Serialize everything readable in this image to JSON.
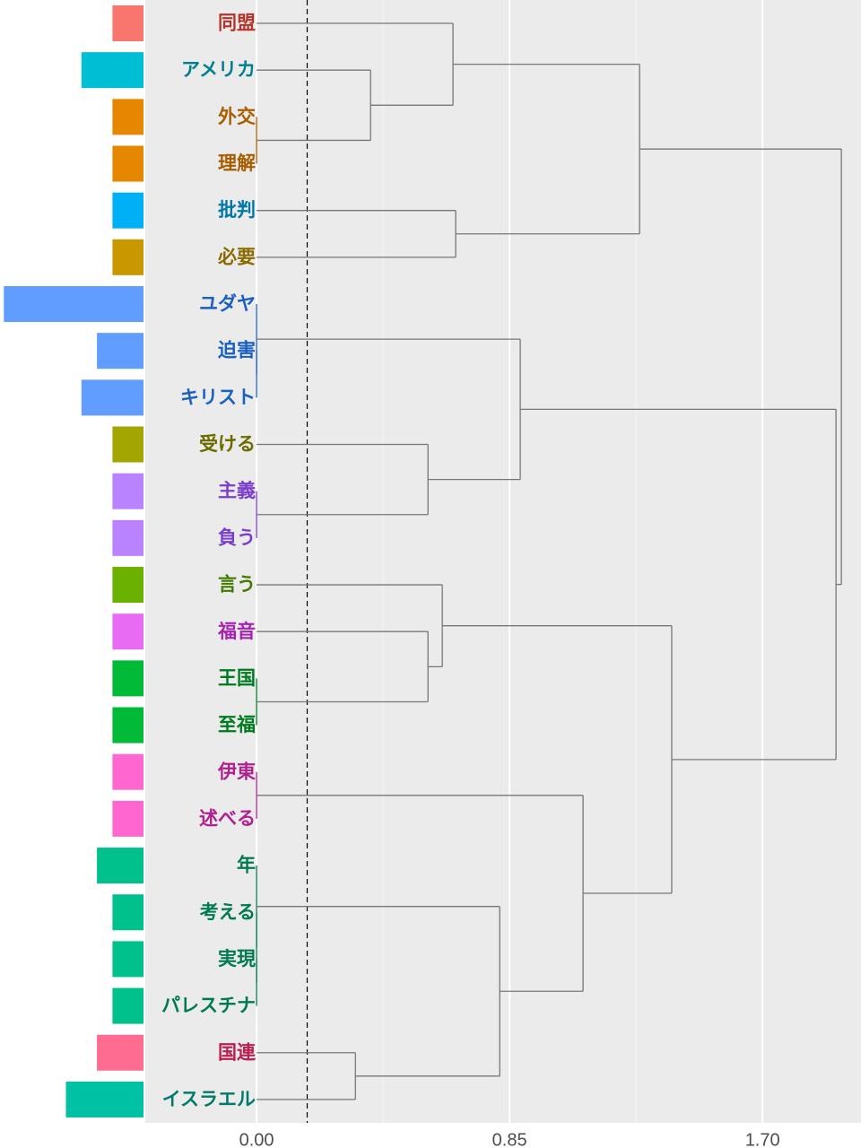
{
  "chart_data": {
    "type": "dendrogram",
    "categories": [
      "同盟",
      "アメリカ",
      "外交",
      "理解",
      "批判",
      "必要",
      "ユダヤ",
      "迫害",
      "キリスト",
      "受ける",
      "主義",
      "負う",
      "言う",
      "福音",
      "王国",
      "至福",
      "伊東",
      "述べる",
      "年",
      "考える",
      "実現",
      "パレスチナ",
      "国連",
      "イスラエル"
    ],
    "values": [
      2,
      4,
      2,
      2,
      2,
      2,
      9,
      3,
      4,
      2,
      2,
      2,
      2,
      2,
      2,
      2,
      2,
      2,
      3,
      2,
      2,
      2,
      3,
      5
    ],
    "bar_colors": [
      "#F8766D",
      "#00BFD4",
      "#E58700",
      "#E58700",
      "#00B0F6",
      "#C99800",
      "#619CFF",
      "#619CFF",
      "#619CFF",
      "#A3A500",
      "#B983FF",
      "#B983FF",
      "#6BB100",
      "#E76BF3",
      "#00BA38",
      "#00BA38",
      "#FF67D0",
      "#FF67D0",
      "#00C08B",
      "#00C08B",
      "#00C08B",
      "#00C08B",
      "#FF6C91",
      "#00C1A3"
    ],
    "label_colors": [
      "#B5332A",
      "#00808F",
      "#A85E00",
      "#A85E00",
      "#0077AA",
      "#8A6A00",
      "#1A5FC2",
      "#1A5FC2",
      "#1A5FC2",
      "#6B6B00",
      "#7A3FCC",
      "#7A3FCC",
      "#437A00",
      "#A523B0",
      "#007A20",
      "#007A20",
      "#B0208F",
      "#B0208F",
      "#007A50",
      "#007A50",
      "#007A50",
      "#007A50",
      "#B8204F",
      "#007A6A"
    ],
    "tree": {
      "height": 1.965,
      "children": [
        {
          "height": 1.287,
          "children": [
            {
              "height": 0.66,
              "children": [
                0,
                {
                  "height": 0.383,
                  "children": [
                    1,
                    {
                      "height": 0,
                      "children": [
                        2,
                        3
                      ]
                    }
                  ]
                }
              ]
            },
            {
              "height": 0.669,
              "children": [
                4,
                5
              ]
            }
          ]
        },
        {
          "height": 1.947,
          "children": [
            {
              "height": 0.886,
              "children": [
                {
                  "height": 0,
                  "children": [
                    6,
                    {
                      "height": 0,
                      "children": [
                        7,
                        8
                      ]
                    }
                  ]
                },
                {
                  "height": 0.576,
                  "children": [
                    9,
                    {
                      "height": 0,
                      "children": [
                        10,
                        11
                      ]
                    }
                  ]
                }
              ]
            },
            {
              "height": 1.395,
              "children": [
                {
                  "height": 0.624,
                  "children": [
                    12,
                    {
                      "height": 0.576,
                      "children": [
                        13,
                        {
                          "height": 0,
                          "children": [
                            14,
                            15
                          ]
                        }
                      ]
                    }
                  ]
                },
                {
                  "height": 1.097,
                  "children": [
                    {
                      "height": 0,
                      "children": [
                        16,
                        17
                      ]
                    },
                    {
                      "height": 0.817,
                      "children": [
                        {
                          "height": 0,
                          "children": [
                            18,
                            {
                              "height": 0,
                              "children": [
                                19,
                                {
                                  "height": 0,
                                  "children": [
                                    20,
                                    21
                                  ]
                                }
                              ]
                            }
                          ]
                        },
                        {
                          "height": 0.332,
                          "children": [
                            22,
                            23
                          ]
                        }
                      ]
                    }
                  ]
                }
              ]
            }
          ]
        }
      ]
    },
    "xlim": [
      -0.374,
      2.031
    ],
    "xticks": [
      {
        "value": 0,
        "label": "0.00"
      },
      {
        "value": 0.85,
        "label": "0.85"
      },
      {
        "value": 1.7,
        "label": "1.70"
      }
    ],
    "minor_xticks": [
      0.425,
      1.275
    ],
    "cut_height": 0.17,
    "grid": true
  }
}
